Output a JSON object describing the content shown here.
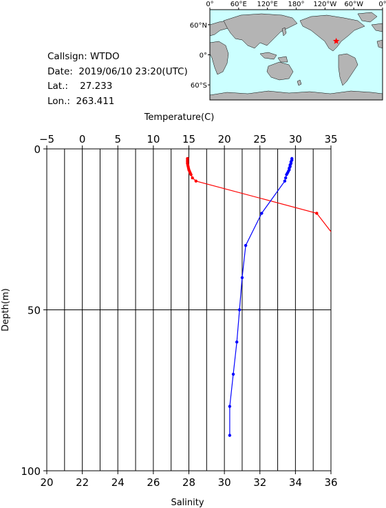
{
  "info": {
    "callsign_label": "Callsign:",
    "callsign": "WTDO",
    "date_label": "Date:",
    "date": "2019/06/10 23:20(UTC)",
    "lat_label": "Lat.:",
    "lat": "27.233",
    "lon_label": "Lon.:",
    "lon": "263.411"
  },
  "map": {
    "top_labels": [
      "0°",
      "60°E",
      "120°E",
      "180°",
      "120°W",
      "60°W",
      "0°"
    ],
    "side_labels": [
      "60°N",
      "0°",
      "60°S"
    ],
    "ocean_color": "#ccffff",
    "land_color": "#b4b4b4",
    "marker": {
      "lat": 27.233,
      "lon": 263.411,
      "color": "#ff0000",
      "icon": "star-icon"
    }
  },
  "chart_data": {
    "type": "line",
    "top_axis": {
      "label": "Temperature(C)",
      "range": [
        -5,
        35
      ],
      "ticks": [
        -5,
        0,
        5,
        10,
        15,
        20,
        25,
        30,
        35
      ]
    },
    "bottom_axis": {
      "label": "Salinity",
      "range": [
        20,
        36
      ],
      "ticks": [
        20,
        22,
        24,
        26,
        28,
        30,
        32,
        34,
        36
      ]
    },
    "y_axis": {
      "label": "Depth(m)",
      "range": [
        0,
        100
      ],
      "ticks": [
        0,
        50,
        100
      ],
      "inverted": true
    },
    "grid": true,
    "series": [
      {
        "name": "",
        "axis": "temperature",
        "color": "#ff0000",
        "points": [
          [
            14.8,
            3
          ],
          [
            14.8,
            3.5
          ],
          [
            14.8,
            4
          ],
          [
            14.8,
            4.5
          ],
          [
            14.85,
            5
          ],
          [
            14.9,
            5.5
          ],
          [
            14.95,
            6
          ],
          [
            15.0,
            6.5
          ],
          [
            15.1,
            7
          ],
          [
            15.2,
            7.5
          ],
          [
            15.3,
            8
          ],
          [
            15.5,
            9
          ],
          [
            16.0,
            10
          ],
          [
            33.0,
            20
          ],
          [
            36.5,
            30
          ]
        ]
      },
      {
        "name": "",
        "axis": "salinity",
        "color": "#0000ff",
        "points": [
          [
            33.8,
            3
          ],
          [
            33.8,
            3.5
          ],
          [
            33.75,
            4
          ],
          [
            33.75,
            4.5
          ],
          [
            33.7,
            5
          ],
          [
            33.7,
            5.5
          ],
          [
            33.65,
            6
          ],
          [
            33.65,
            6.5
          ],
          [
            33.6,
            7
          ],
          [
            33.55,
            7.5
          ],
          [
            33.5,
            8
          ],
          [
            33.45,
            9
          ],
          [
            33.4,
            10
          ],
          [
            32.1,
            20
          ],
          [
            31.2,
            30
          ],
          [
            31.0,
            40
          ],
          [
            30.85,
            50
          ],
          [
            30.7,
            60
          ],
          [
            30.5,
            70
          ],
          [
            30.3,
            80
          ],
          [
            30.3,
            89
          ]
        ]
      }
    ]
  }
}
